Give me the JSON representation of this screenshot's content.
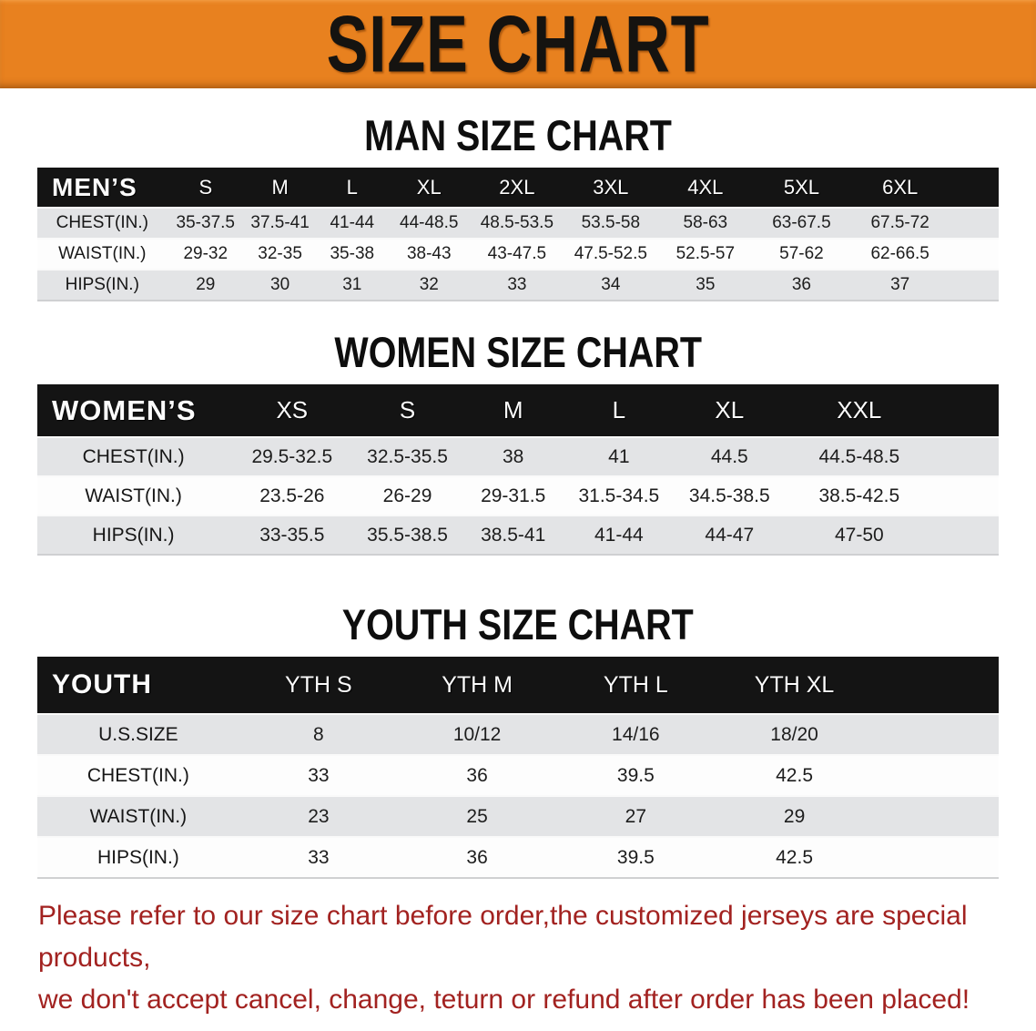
{
  "banner": {
    "title": "SIZE CHART",
    "bg_color": "#e8811f",
    "text_color": "#151310"
  },
  "tables": {
    "men": {
      "heading": "MAN SIZE CHART",
      "header": [
        "MEN’S",
        "S",
        "M",
        "L",
        "XL",
        "2XL",
        "3XL",
        "4XL",
        "5XL",
        "6XL"
      ],
      "rows": [
        {
          "label": "CHEST(IN.)",
          "values": [
            "35-37.5",
            "37.5-41",
            "41-44",
            "44-48.5",
            "48.5-53.5",
            "53.5-58",
            "58-63",
            "63-67.5",
            "67.5-72"
          ]
        },
        {
          "label": "WAIST(IN.)",
          "values": [
            "29-32",
            "32-35",
            "35-38",
            "38-43",
            "43-47.5",
            "47.5-52.5",
            "52.5-57",
            "57-62",
            "62-66.5"
          ]
        },
        {
          "label": "HIPS(IN.)",
          "values": [
            "29",
            "30",
            "31",
            "32",
            "33",
            "34",
            "35",
            "36",
            "37"
          ]
        }
      ]
    },
    "women": {
      "heading": "WOMEN SIZE CHART",
      "header": [
        "WOMEN’S",
        "XS",
        "S",
        "M",
        "L",
        "XL",
        "XXL"
      ],
      "rows": [
        {
          "label": "CHEST(IN.)",
          "values": [
            "29.5-32.5",
            "32.5-35.5",
            "38",
            "41",
            "44.5",
            "44.5-48.5"
          ]
        },
        {
          "label": "WAIST(IN.)",
          "values": [
            "23.5-26",
            "26-29",
            "29-31.5",
            "31.5-34.5",
            "34.5-38.5",
            "38.5-42.5"
          ]
        },
        {
          "label": "HIPS(IN.)",
          "values": [
            "33-35.5",
            "35.5-38.5",
            "38.5-41",
            "41-44",
            "44-47",
            "47-50"
          ]
        }
      ]
    },
    "youth": {
      "heading": "YOUTH SIZE CHART",
      "header": [
        "YOUTH",
        "YTH S",
        "YTH M",
        "YTH L",
        "YTH XL"
      ],
      "rows": [
        {
          "label": "U.S.SIZE",
          "values": [
            "8",
            "10/12",
            "14/16",
            "18/20"
          ]
        },
        {
          "label": "CHEST(IN.)",
          "values": [
            "33",
            "36",
            "39.5",
            "42.5"
          ]
        },
        {
          "label": "WAIST(IN.)",
          "values": [
            "23",
            "25",
            "27",
            "29"
          ]
        },
        {
          "label": "HIPS(IN.)",
          "values": [
            "33",
            "36",
            "39.5",
            "42.5"
          ]
        }
      ]
    }
  },
  "disclaimer": {
    "lines": [
      "Please refer to our size chart before order,the customized jerseys are special products,",
      "we don't accept cancel, change, teturn or refund after order has been placed!"
    ],
    "color": "#a22220"
  }
}
